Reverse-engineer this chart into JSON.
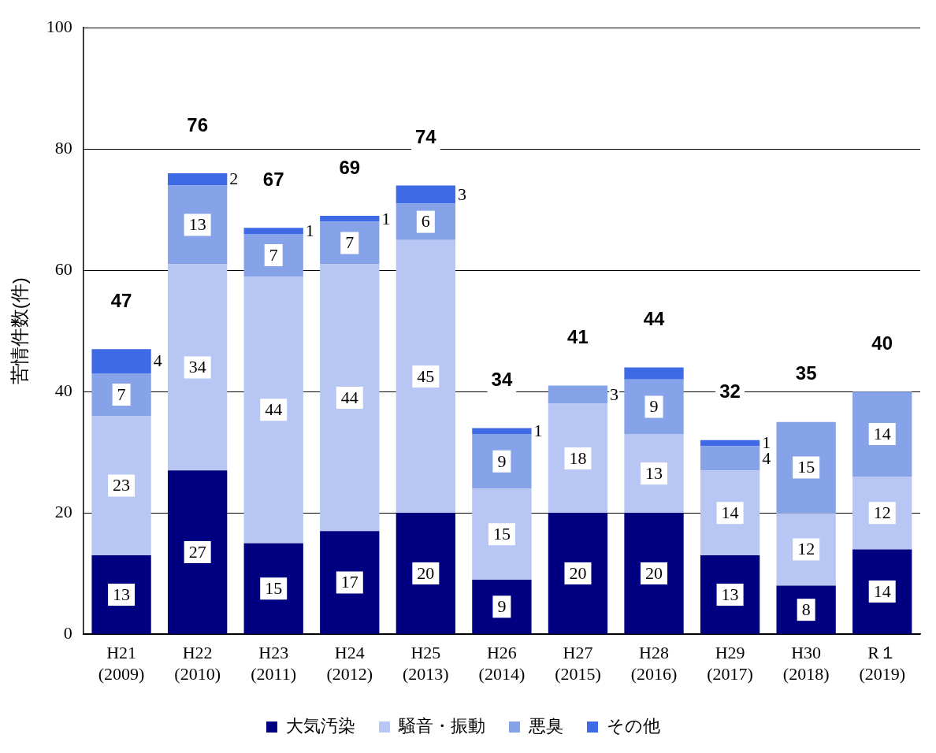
{
  "chart_data": {
    "type": "bar",
    "stacked": true,
    "ylabel": "苦情件数(件)",
    "categories": [
      "H21\n(2009)",
      "H22\n(2010)",
      "H23\n(2011)",
      "H24\n(2012)",
      "H25\n(2013)",
      "H26\n(2014)",
      "H27\n(2015)",
      "H28\n(2016)",
      "H29\n(2017)",
      "H30\n(2018)",
      "R１\n(2019)"
    ],
    "series": [
      {
        "name": "大気汚染",
        "color": "#000080",
        "values": [
          13,
          27,
          15,
          17,
          20,
          9,
          20,
          20,
          13,
          8,
          14
        ],
        "value_labels": [
          "13",
          "27",
          "15",
          "17",
          "20",
          "9",
          "20",
          "20",
          "13",
          "8",
          "14"
        ]
      },
      {
        "name": "騒音・振動",
        "color": "#b7c6f2",
        "values": [
          23,
          34,
          44,
          44,
          45,
          15,
          18,
          13,
          14,
          12,
          12
        ],
        "value_labels": [
          "23",
          "34",
          "44",
          "44",
          "45",
          "15",
          "18",
          "13",
          "14",
          "12",
          "12"
        ]
      },
      {
        "name": "悪臭",
        "color": "#86a2e8",
        "values": [
          7,
          13,
          7,
          7,
          6,
          9,
          3,
          9,
          4,
          15,
          14
        ],
        "value_labels": [
          "7",
          "13",
          "7",
          "7",
          "6",
          "9",
          "3",
          "9",
          "4",
          "15",
          "14"
        ]
      },
      {
        "name": "その他",
        "color": "#3f6ae6",
        "values": [
          4,
          2,
          1,
          1,
          3,
          1,
          0,
          2,
          1,
          0,
          0
        ],
        "value_labels": [
          "4",
          "2",
          "1",
          "1",
          "3",
          "1",
          null,
          null,
          "1",
          null,
          null
        ]
      }
    ],
    "totals": [
      "47",
      "76",
      "67",
      "69",
      "74",
      "34",
      "41",
      "44",
      "32",
      "35",
      "40"
    ],
    "ylim": [
      0,
      100
    ],
    "yticks": [
      0,
      20,
      40,
      60,
      80,
      100
    ],
    "grid": "y",
    "legend": "bottom"
  }
}
